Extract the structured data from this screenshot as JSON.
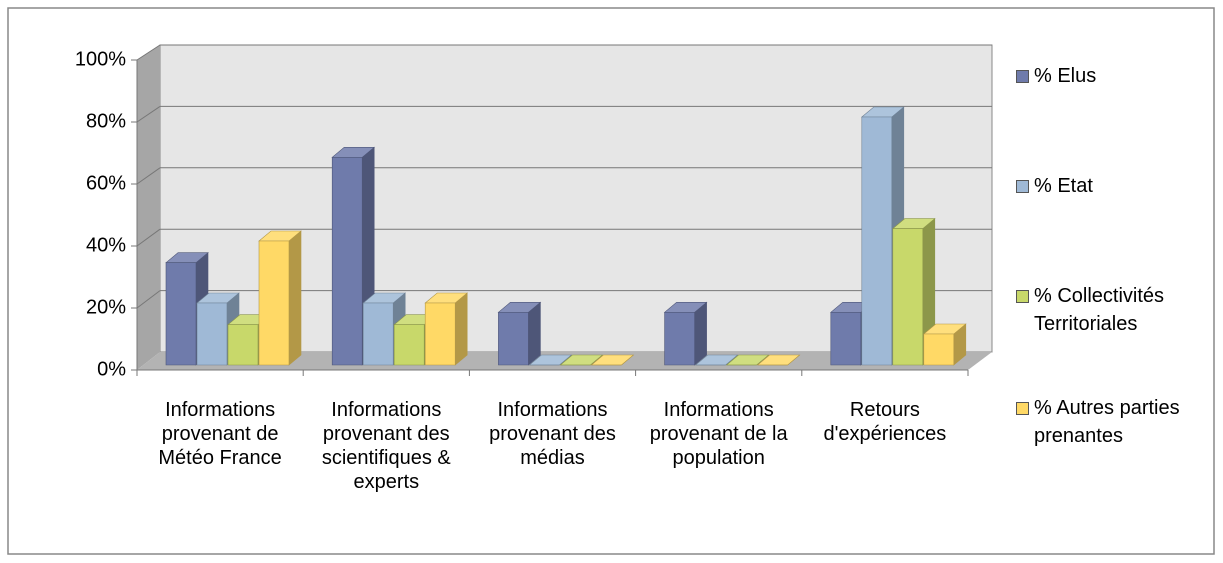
{
  "chart_data": {
    "type": "bar3d",
    "categories": [
      "Informations provenant de Météo France",
      "Informations provenant des scientifiques & experts",
      "Informations provenant des médias",
      "Informations provenant de la population",
      "Retours d'expériences"
    ],
    "series": [
      {
        "name": "% Elus",
        "color": "#6f7bab",
        "values": [
          33,
          67,
          17,
          17,
          17
        ]
      },
      {
        "name": "% Etat",
        "color": "#9fb9d6",
        "values": [
          20,
          20,
          0,
          0,
          80
        ]
      },
      {
        "name": "% Collectivités Territoriales",
        "color": "#c8d86a",
        "values": [
          13,
          13,
          0,
          0,
          44
        ]
      },
      {
        "name": "% Autres parties prenantes",
        "color": "#ffd966",
        "values": [
          40,
          20,
          0,
          0,
          10
        ]
      }
    ],
    "ylim": [
      0,
      100
    ],
    "yticks": [
      {
        "value": 0,
        "label": "0%"
      },
      {
        "value": 20,
        "label": "20%"
      },
      {
        "value": 40,
        "label": "40%"
      },
      {
        "value": 60,
        "label": "60%"
      },
      {
        "value": 80,
        "label": "80%"
      },
      {
        "value": 100,
        "label": "100%"
      }
    ],
    "grid": true,
    "legend": "right"
  }
}
